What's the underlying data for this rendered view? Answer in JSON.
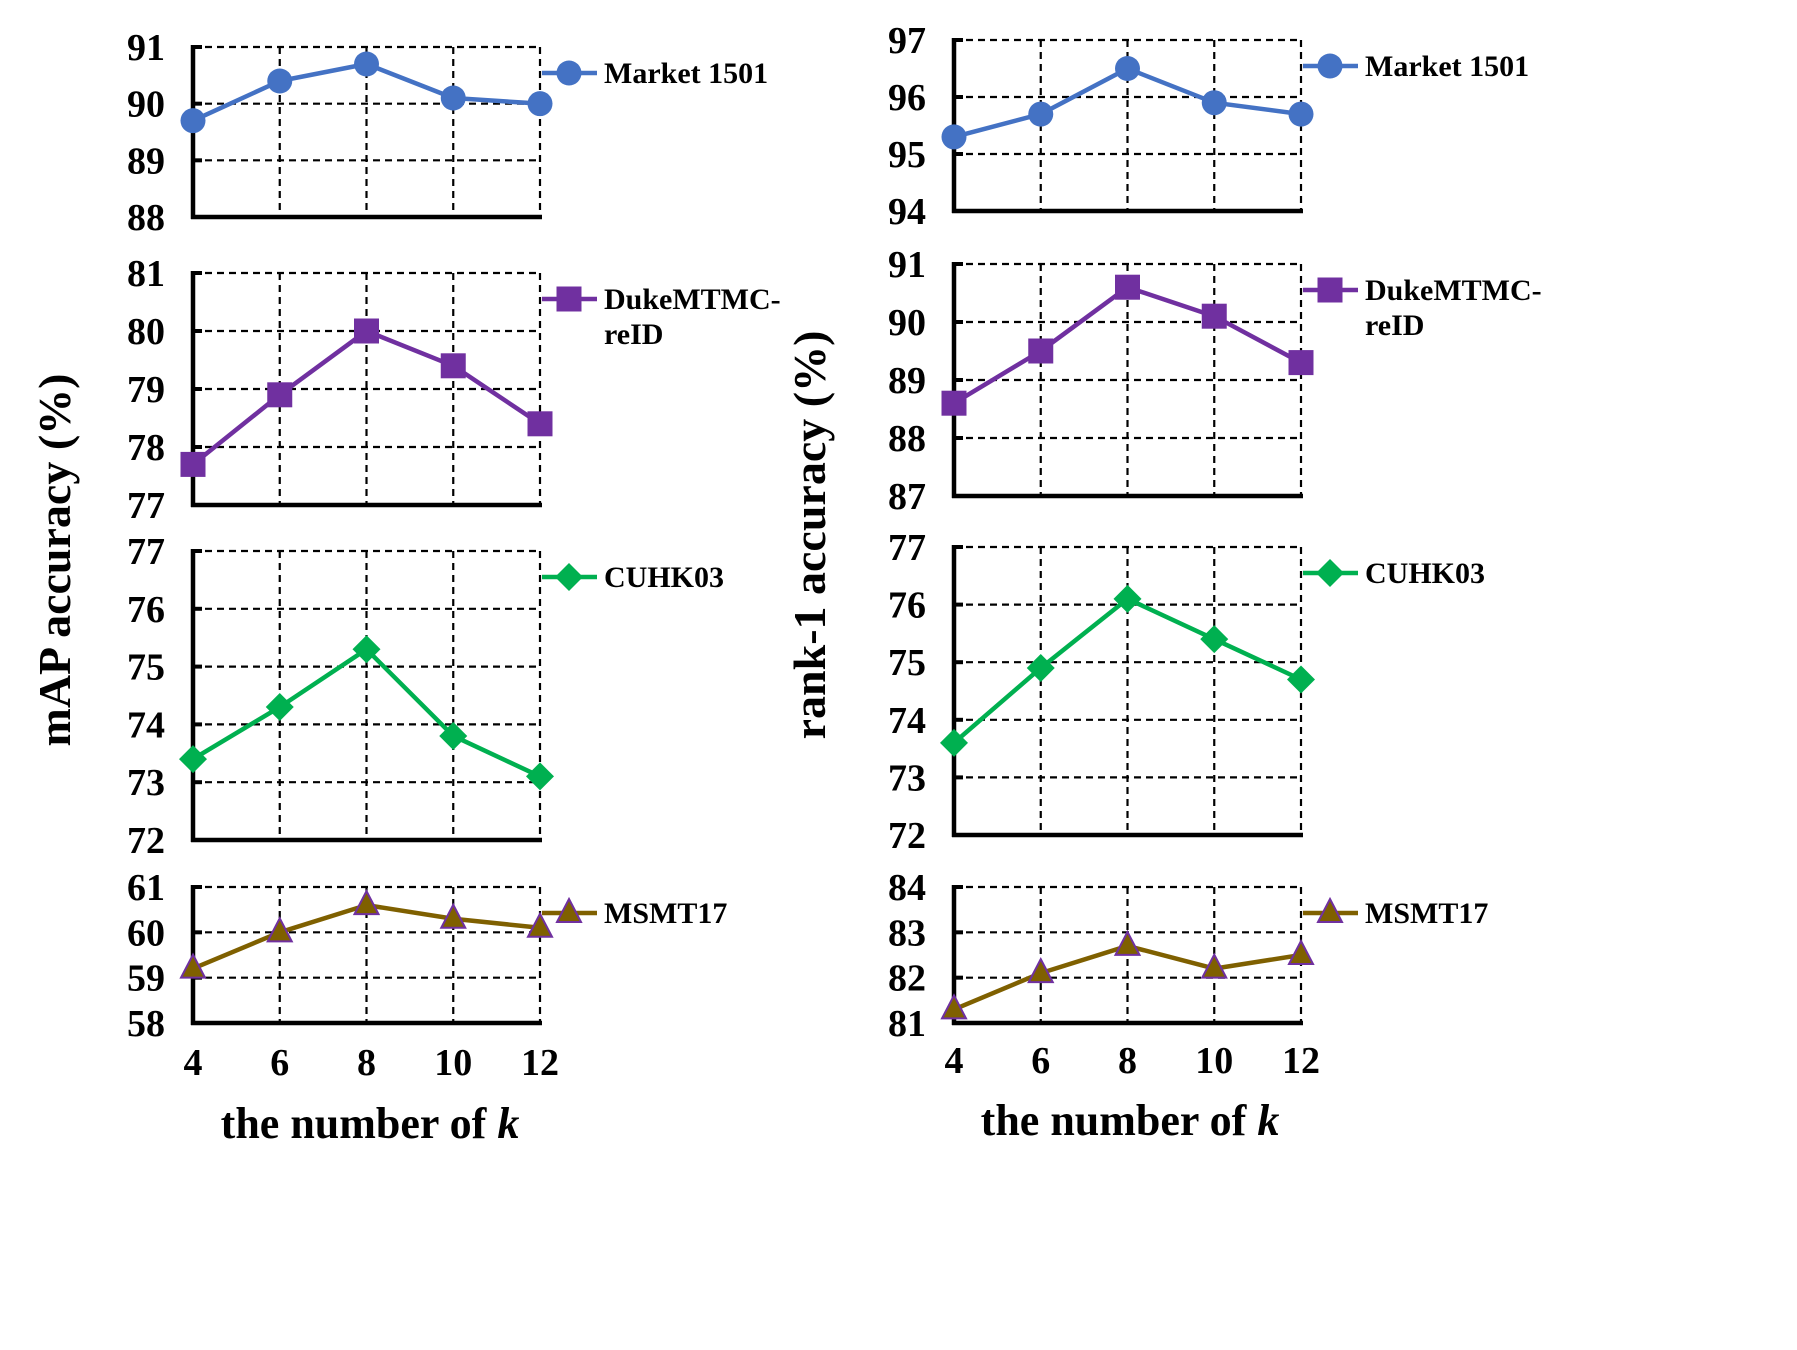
{
  "chart_data": [
    {
      "type": "line",
      "panel": "left",
      "x": [
        4,
        6,
        8,
        10,
        12
      ],
      "x_tick_labels": [
        "4",
        "6",
        "8",
        "10",
        "12"
      ],
      "xlabel_text": "the number of ",
      "xlabel_var": "k",
      "ylabel": "mAP accuracy (%)",
      "grid": true,
      "legend_position": "right",
      "subplots": [
        {
          "series": [
            {
              "name": "Market 1501",
              "values": [
                89.7,
                90.4,
                90.7,
                90.1,
                90.0
              ]
            }
          ],
          "ylim": [
            88,
            91
          ],
          "yticks": [
            "88",
            "89",
            "90",
            "91"
          ],
          "legend": [
            "Market 1501"
          ],
          "color": "#4472C4",
          "marker": "circle"
        },
        {
          "series": [
            {
              "name": "DukeMTMC-reID",
              "values": [
                77.7,
                78.9,
                80.0,
                79.4,
                78.4
              ]
            }
          ],
          "ylim": [
            77,
            81
          ],
          "yticks": [
            "77",
            "78",
            "79",
            "80",
            "81"
          ],
          "legend": [
            "DukeMTMC-",
            "reID"
          ],
          "color": "#7030A0",
          "marker": "square"
        },
        {
          "series": [
            {
              "name": "CUHK03",
              "values": [
                73.4,
                74.3,
                75.3,
                73.8,
                73.1
              ]
            }
          ],
          "ylim": [
            72,
            77
          ],
          "yticks": [
            "72",
            "73",
            "74",
            "75",
            "76",
            "77"
          ],
          "legend": [
            "CUHK03"
          ],
          "color": "#00B050",
          "marker": "diamond"
        },
        {
          "series": [
            {
              "name": "MSMT17",
              "values": [
                59.2,
                60.0,
                60.6,
                60.3,
                60.1
              ]
            }
          ],
          "ylim": [
            58,
            61
          ],
          "yticks": [
            "58",
            "59",
            "60",
            "61"
          ],
          "legend": [
            "MSMT17"
          ],
          "color": "#7F6000",
          "marker": "triangle"
        }
      ]
    },
    {
      "type": "line",
      "panel": "right",
      "x": [
        4,
        6,
        8,
        10,
        12
      ],
      "x_tick_labels": [
        "4",
        "6",
        "8",
        "10",
        "12"
      ],
      "xlabel_text": "the number of ",
      "xlabel_var": "k",
      "ylabel": "rank-1 accuracy (%)",
      "grid": true,
      "legend_position": "right",
      "subplots": [
        {
          "series": [
            {
              "name": "Market 1501",
              "values": [
                95.3,
                95.7,
                96.5,
                95.9,
                95.7
              ]
            }
          ],
          "ylim": [
            94,
            97
          ],
          "yticks": [
            "94",
            "95",
            "96",
            "97"
          ],
          "legend": [
            "Market 1501"
          ],
          "color": "#4472C4",
          "marker": "circle"
        },
        {
          "series": [
            {
              "name": "DukeMTMC-reID",
              "values": [
                88.6,
                89.5,
                90.6,
                90.1,
                89.3
              ]
            }
          ],
          "ylim": [
            87,
            91
          ],
          "yticks": [
            "87",
            "88",
            "89",
            "90",
            "91"
          ],
          "legend": [
            "DukeMTMC-",
            "reID"
          ],
          "color": "#7030A0",
          "marker": "square"
        },
        {
          "series": [
            {
              "name": "CUHK03",
              "values": [
                73.6,
                74.9,
                76.1,
                75.4,
                74.7
              ]
            }
          ],
          "ylim": [
            72,
            77
          ],
          "yticks": [
            "72",
            "73",
            "74",
            "75",
            "76",
            "77"
          ],
          "legend": [
            "CUHK03"
          ],
          "color": "#00B050",
          "marker": "diamond"
        },
        {
          "series": [
            {
              "name": "MSMT17",
              "values": [
                81.3,
                82.1,
                82.7,
                82.2,
                82.5
              ]
            }
          ],
          "ylim": [
            81,
            84
          ],
          "yticks": [
            "81",
            "82",
            "83",
            "84"
          ],
          "legend": [
            "MSMT17"
          ],
          "color": "#7F6000",
          "marker": "triangle"
        }
      ]
    }
  ]
}
